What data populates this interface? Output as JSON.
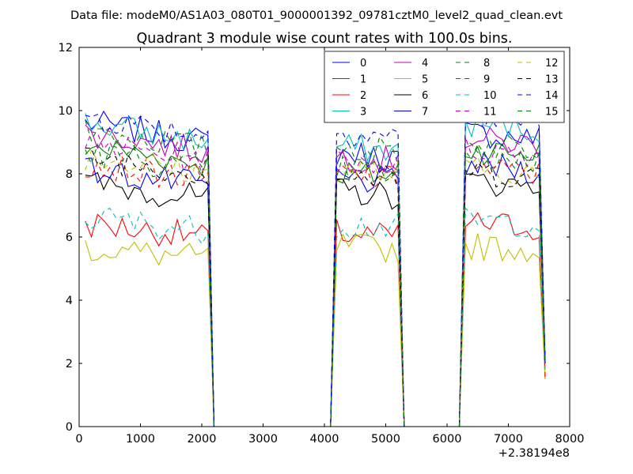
{
  "chart_data": {
    "type": "line",
    "suptitle": "Data file: modeM0/AS1A03_080T01_9000001392_09781cztM0_level2_quad_clean.evt",
    "title": "Quadrant 3 module wise count rates with 100.0s bins.",
    "xlabel": "",
    "ylabel": "",
    "x_offset_label": "+2.38194e8",
    "xlim": [
      0,
      8000
    ],
    "ylim": [
      0,
      12
    ],
    "xticks": [
      0,
      1000,
      2000,
      3000,
      4000,
      5000,
      6000,
      7000,
      8000
    ],
    "yticks": [
      0,
      2,
      4,
      6,
      8,
      10,
      12
    ],
    "grid": false,
    "legend_position": "upper right",
    "segments": [
      {
        "start": 100,
        "end": 2100,
        "drop_to": 2200
      },
      {
        "start": 4200,
        "end": 5200,
        "drop_to": 5300
      },
      {
        "start": 6300,
        "end": 7600,
        "drop_to": 7600
      }
    ],
    "gap_value": 0,
    "series": [
      {
        "name": "0",
        "color": "#0000ff",
        "dash": "solid",
        "levels": [
          9.0,
          8.5,
          9.1
        ],
        "end_value": 2.0
      },
      {
        "name": "1",
        "color": "#008000",
        "dash": "solid",
        "levels": [
          8.3,
          7.9,
          8.6
        ],
        "end_value": 2.0
      },
      {
        "name": "2",
        "color": "#ff0000",
        "dash": "solid",
        "levels": [
          6.0,
          6.0,
          6.3
        ],
        "end_value": 1.5
      },
      {
        "name": "3",
        "color": "#00bfbf",
        "dash": "solid",
        "levels": [
          9.0,
          8.7,
          9.4
        ],
        "end_value": 2.0
      },
      {
        "name": "4",
        "color": "#bf00bf",
        "dash": "solid",
        "levels": [
          8.7,
          8.4,
          8.9
        ],
        "end_value": 2.0
      },
      {
        "name": "5",
        "color": "#bfbf00",
        "dash": "solid",
        "levels": [
          5.3,
          5.6,
          5.6
        ],
        "end_value": 1.5
      },
      {
        "name": "6",
        "color": "#000000",
        "dash": "solid",
        "levels": [
          7.2,
          7.3,
          7.6
        ],
        "end_value": 2.0
      },
      {
        "name": "7",
        "color": "#0000ff",
        "dash": "solid",
        "levels": [
          7.6,
          7.7,
          8.1
        ],
        "end_value": 2.0
      },
      {
        "name": "8",
        "color": "#008000",
        "dash": "dashed",
        "levels": [
          8.8,
          8.7,
          8.8
        ],
        "end_value": 2.0
      },
      {
        "name": "9",
        "color": "#ff0000",
        "dash": "dashed",
        "levels": [
          7.8,
          7.8,
          8.0
        ],
        "end_value": 1.5
      },
      {
        "name": "10",
        "color": "#00bfbf",
        "dash": "dashed",
        "levels": [
          6.2,
          6.3,
          6.4
        ],
        "end_value": 1.8
      },
      {
        "name": "11",
        "color": "#bf00bf",
        "dash": "dashed",
        "levels": [
          8.4,
          8.3,
          8.6
        ],
        "end_value": 2.0
      },
      {
        "name": "12",
        "color": "#bfbf00",
        "dash": "dashed",
        "levels": [
          8.0,
          8.0,
          8.0
        ],
        "end_value": 2.0
      },
      {
        "name": "13",
        "color": "#000000",
        "dash": "dashed",
        "levels": [
          8.0,
          7.8,
          7.9
        ],
        "end_value": 2.0
      },
      {
        "name": "14",
        "color": "#0000ff",
        "dash": "dashed",
        "levels": [
          9.2,
          9.2,
          9.6
        ],
        "end_value": 2.0
      },
      {
        "name": "15",
        "color": "#008000",
        "dash": "dashed",
        "levels": [
          8.1,
          8.0,
          8.4
        ],
        "end_value": 2.0
      }
    ]
  }
}
